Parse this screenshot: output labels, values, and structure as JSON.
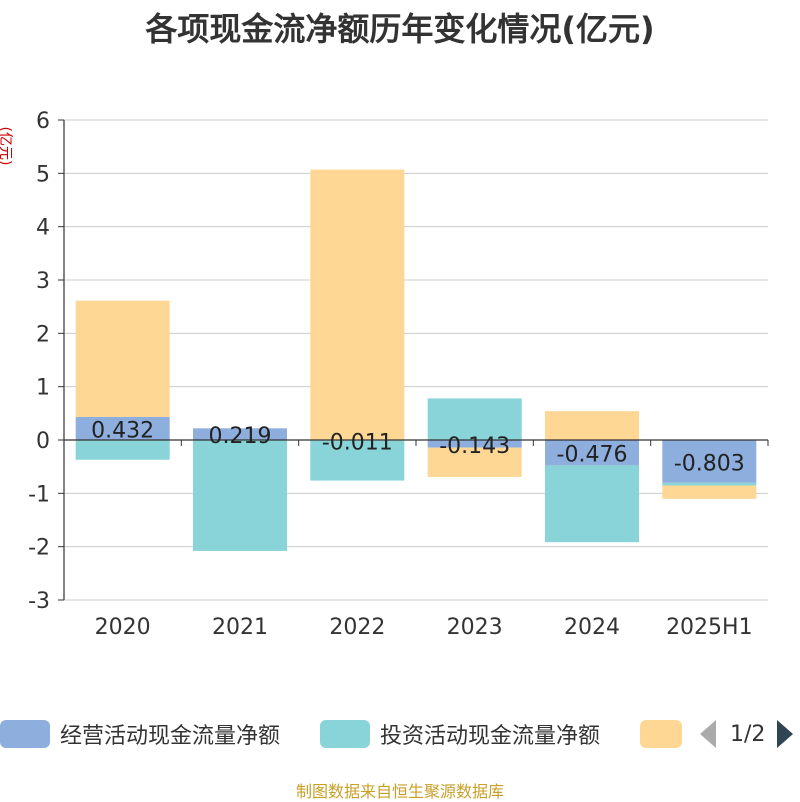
{
  "title": "各项现金流净额历年变化情况(亿元)",
  "source_note": "制图数据来自恒生聚源数据库",
  "legend_pager": "1/2",
  "colors": {
    "operating": "#8eaedd",
    "investing": "#88d4d8",
    "financing": "#fed795",
    "axis": "#333333",
    "grid": "#cccccc"
  },
  "chart_data": {
    "type": "bar",
    "stacked": true,
    "ylabel": "(亿元)",
    "ylim": [
      -3,
      6
    ],
    "yticks": [
      -3,
      -2,
      -1,
      0,
      1,
      2,
      3,
      4,
      5,
      6
    ],
    "grid": true,
    "legend_position": "bottom",
    "categories": [
      "2020",
      "2021",
      "2022",
      "2023",
      "2024",
      "2025H1"
    ],
    "series": [
      {
        "name": "经营活动现金流量净额",
        "values": [
          0.432,
          0.219,
          -0.011,
          -0.143,
          -0.476,
          -0.803
        ],
        "labels": [
          "0.432",
          "0.219",
          "-0.011",
          "-0.143",
          "-0.476",
          "-0.803"
        ]
      },
      {
        "name": "投资活动现金流量净额",
        "values": [
          -0.37,
          -2.08,
          -0.75,
          0.78,
          -1.44,
          -0.05
        ]
      },
      {
        "name": "",
        "values": [
          2.18,
          0.0,
          5.07,
          -0.55,
          0.54,
          -0.25
        ]
      }
    ]
  }
}
